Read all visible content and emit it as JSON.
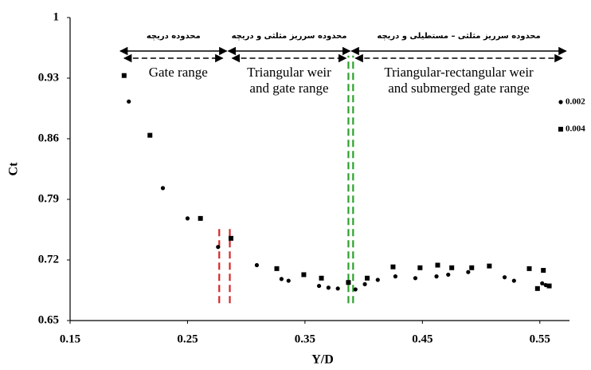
{
  "chart_data": {
    "type": "scatter",
    "x_label": "Y/D",
    "y_label": "Ct",
    "xlim": [
      0.15,
      0.58
    ],
    "ylim": [
      0.65,
      1
    ],
    "xticks": [
      0.15,
      0.25,
      0.35,
      0.45,
      0.55
    ],
    "yticks": [
      0.65,
      0.72,
      0.79,
      0.86,
      0.93,
      1
    ],
    "legend": "right",
    "series": [
      {
        "name": "0.002",
        "marker": "circle",
        "color": "#000000",
        "x": [
          0.2,
          0.229,
          0.25,
          0.276,
          0.309,
          0.33,
          0.336,
          0.362,
          0.37,
          0.378,
          0.393,
          0.401,
          0.412,
          0.427,
          0.444,
          0.462,
          0.472,
          0.489,
          0.52,
          0.528,
          0.552,
          0.555
        ],
        "values": [
          0.903,
          0.803,
          0.768,
          0.735,
          0.714,
          0.698,
          0.696,
          0.69,
          0.688,
          0.687,
          0.686,
          0.692,
          0.697,
          0.701,
          0.699,
          0.701,
          0.703,
          0.706,
          0.7,
          0.696,
          0.693,
          0.691
        ]
      },
      {
        "name": "0.004",
        "marker": "square",
        "color": "#000000",
        "x": [
          0.196,
          0.218,
          0.261,
          0.287,
          0.326,
          0.349,
          0.364,
          0.387,
          0.403,
          0.425,
          0.448,
          0.463,
          0.475,
          0.492,
          0.507,
          0.541,
          0.553,
          0.548,
          0.558
        ],
        "values": [
          0.933,
          0.864,
          0.768,
          0.745,
          0.71,
          0.703,
          0.699,
          0.694,
          0.699,
          0.712,
          0.711,
          0.714,
          0.711,
          0.711,
          0.713,
          0.71,
          0.708,
          0.687,
          0.69
        ]
      }
    ],
    "regions": [
      {
        "label": "محدوده دریچه",
        "sublabel": [
          "Gate range"
        ],
        "x": [
          0.192,
          0.284
        ]
      },
      {
        "label": "محدوده سرریز مثلثی و دریچه",
        "sublabel": [
          "Triangular weir",
          "and gate range"
        ],
        "x": [
          0.284,
          0.389
        ]
      },
      {
        "label": "محدوده سرریز مثلثی – مستطیلی و دریچه",
        "sublabel": [
          "Triangular-rectangular weir",
          "and submerged gate range"
        ],
        "x": [
          0.389,
          0.573
        ]
      }
    ],
    "boundary_lines": [
      {
        "x": 0.277,
        "y": [
          0.67,
          0.758
        ],
        "color": "#d62728"
      },
      {
        "x": 0.286,
        "y": [
          0.67,
          0.758
        ],
        "color": "#d62728"
      },
      {
        "x": 0.387,
        "y": [
          0.67,
          0.956
        ],
        "color": "#2ca02c"
      },
      {
        "x": 0.391,
        "y": [
          0.67,
          0.956
        ],
        "color": "#2ca02c"
      }
    ]
  }
}
